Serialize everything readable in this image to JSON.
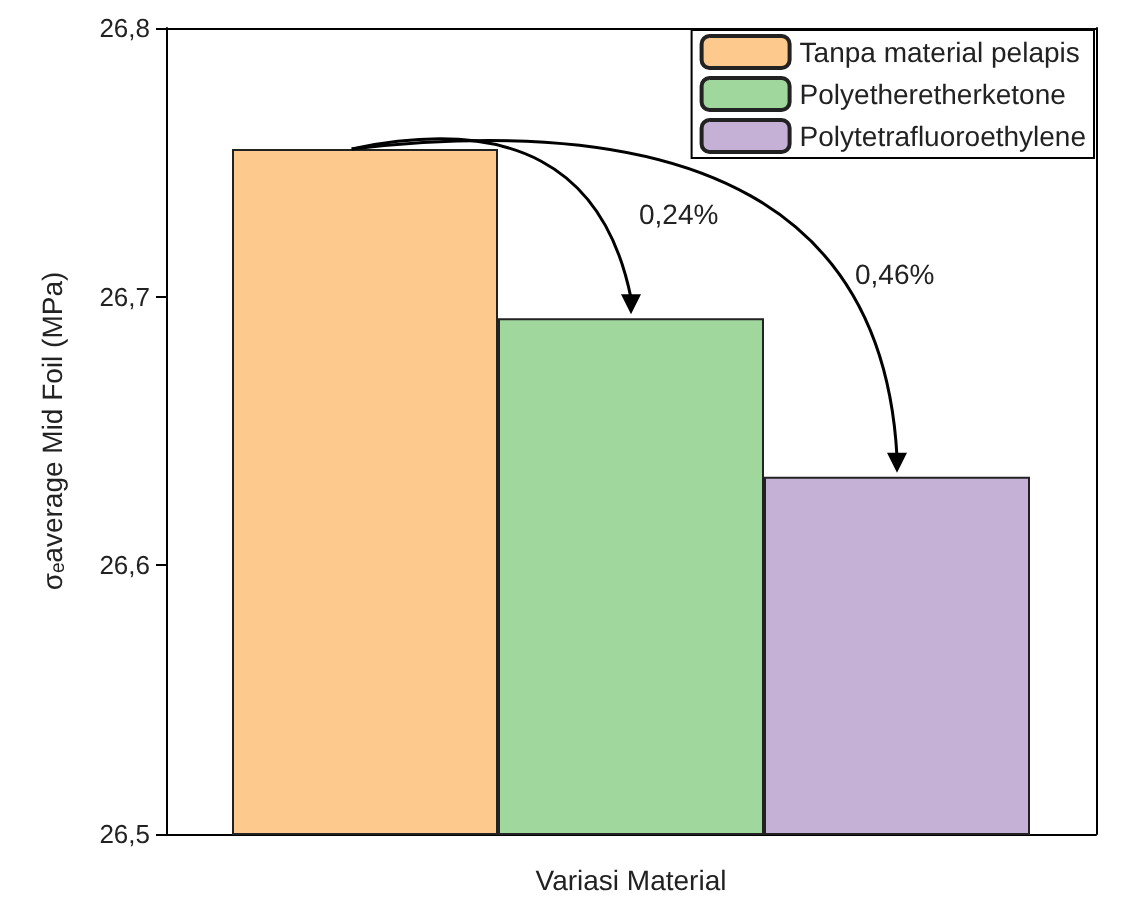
{
  "chart_data": {
    "type": "bar",
    "xlabel": "Variasi Material",
    "ylabel": "σₑaverage Mid Foil (MPa)",
    "categories": [
      null
    ],
    "series": [
      {
        "name": "Tanpa material pelapis",
        "color": "#fdc98c",
        "values": [
          26.755
        ]
      },
      {
        "name": "Polyetheretherketone",
        "color": "#9fd79d",
        "values": [
          26.692
        ]
      },
      {
        "name": "Polytetrafluoroethylene",
        "color": "#c5b1d6",
        "values": [
          26.633
        ]
      }
    ],
    "ylim": [
      26.5,
      26.8
    ],
    "yticks": [
      {
        "value": 26.5,
        "label": "26,5"
      },
      {
        "value": 26.6,
        "label": "26,6"
      },
      {
        "value": 26.7,
        "label": "26,7"
      },
      {
        "value": 26.8,
        "label": "26,8"
      }
    ],
    "grid": false,
    "legend": "top right",
    "annotations": [
      "0,24%",
      "0,46%"
    ]
  }
}
